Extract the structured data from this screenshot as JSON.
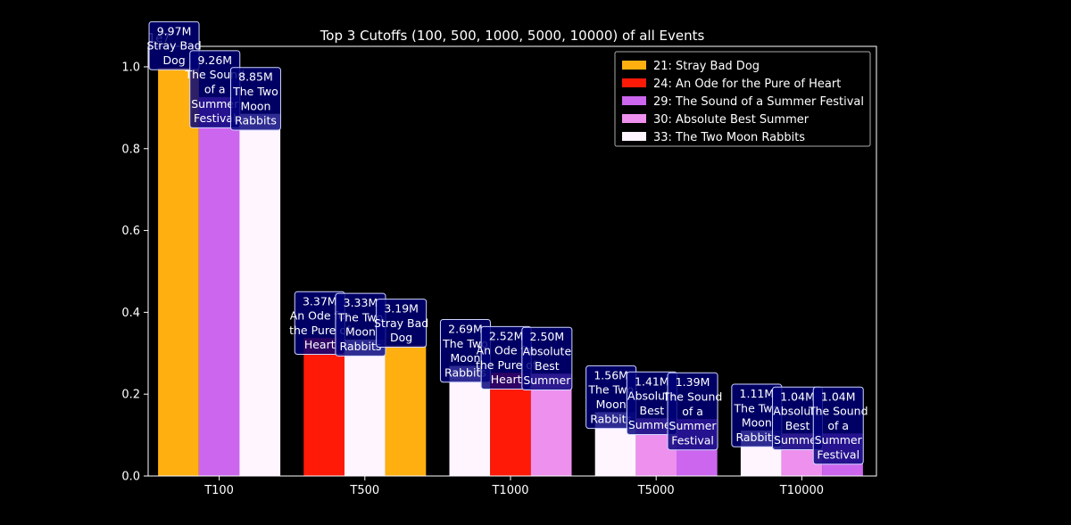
{
  "chart_data": {
    "type": "bar",
    "title": "Top 3 Cutoffs (100, 500, 1000, 5000, 10000) of all Events",
    "xlabel": "",
    "ylabel": "",
    "y_offset_label": "1e7",
    "ylim": [
      0,
      10500000
    ],
    "yticks": [
      {
        "value": 0,
        "label": "0.0"
      },
      {
        "value": 2000000,
        "label": "0.2"
      },
      {
        "value": 4000000,
        "label": "0.4"
      },
      {
        "value": 6000000,
        "label": "0.6"
      },
      {
        "value": 8000000,
        "label": "0.8"
      },
      {
        "value": 10000000,
        "label": "1.0"
      }
    ],
    "categories": [
      "T100",
      "T500",
      "T1000",
      "T5000",
      "T10000"
    ],
    "legend_position": "top-right",
    "grid": false,
    "series_colors": {
      "21": "#ffb010",
      "24": "#ff1a08",
      "29": "#cc66ee",
      "30": "#ee90ee",
      "33": "#fff5ff"
    },
    "legend": [
      {
        "event": "21",
        "label": "21: Stray Bad Dog"
      },
      {
        "event": "24",
        "label": "24: An Ode for the Pure of Heart"
      },
      {
        "event": "29",
        "label": "29: The Sound of a Summer Festival"
      },
      {
        "event": "30",
        "label": "30: Absolute Best Summer"
      },
      {
        "event": "33",
        "label": "33: The Two Moon Rabbits"
      }
    ],
    "groups": [
      {
        "category": "T100",
        "bars": [
          {
            "event": "21",
            "value": 9970000,
            "label": "9.97M",
            "name_lines": [
              "Stray Bad",
              "Dog"
            ]
          },
          {
            "event": "29",
            "value": 9260000,
            "label": "9.26M",
            "name_lines": [
              "The Sound",
              "of a",
              "Summer",
              "Festival"
            ]
          },
          {
            "event": "33",
            "value": 8850000,
            "label": "8.85M",
            "name_lines": [
              "The Two",
              "Moon",
              "Rabbits"
            ]
          }
        ]
      },
      {
        "category": "T500",
        "bars": [
          {
            "event": "24",
            "value": 3370000,
            "label": "3.37M",
            "name_lines": [
              "An Ode for",
              "the Pure of",
              "Heart"
            ]
          },
          {
            "event": "33",
            "value": 3330000,
            "label": "3.33M",
            "name_lines": [
              "The Two",
              "Moon",
              "Rabbits"
            ]
          },
          {
            "event": "21",
            "value": 3190000,
            "label": "3.19M",
            "name_lines": [
              "Stray Bad",
              "Dog"
            ]
          }
        ]
      },
      {
        "category": "T1000",
        "bars": [
          {
            "event": "33",
            "value": 2690000,
            "label": "2.69M",
            "name_lines": [
              "The Two",
              "Moon",
              "Rabbits"
            ]
          },
          {
            "event": "24",
            "value": 2520000,
            "label": "2.52M",
            "name_lines": [
              "An Ode for",
              "the Pure of",
              "Heart"
            ]
          },
          {
            "event": "30",
            "value": 2500000,
            "label": "2.50M",
            "name_lines": [
              "Absolute",
              "Best",
              "Summer"
            ]
          }
        ]
      },
      {
        "category": "T5000",
        "bars": [
          {
            "event": "33",
            "value": 1560000,
            "label": "1.56M",
            "name_lines": [
              "The Two",
              "Moon",
              "Rabbits"
            ]
          },
          {
            "event": "30",
            "value": 1410000,
            "label": "1.41M",
            "name_lines": [
              "Absolute",
              "Best",
              "Summer"
            ]
          },
          {
            "event": "29",
            "value": 1390000,
            "label": "1.39M",
            "name_lines": [
              "The Sound",
              "of a",
              "Summer",
              "Festival"
            ]
          }
        ]
      },
      {
        "category": "T10000",
        "bars": [
          {
            "event": "33",
            "value": 1110000,
            "label": "1.11M",
            "name_lines": [
              "The Two",
              "Moon",
              "Rabbits"
            ]
          },
          {
            "event": "30",
            "value": 1040000,
            "label": "1.04M",
            "name_lines": [
              "Absolute",
              "Best",
              "Summer"
            ]
          },
          {
            "event": "29",
            "value": 1040000,
            "label": "1.04M",
            "name_lines": [
              "The Sound",
              "of a",
              "Summer",
              "Festival"
            ]
          }
        ]
      }
    ]
  }
}
